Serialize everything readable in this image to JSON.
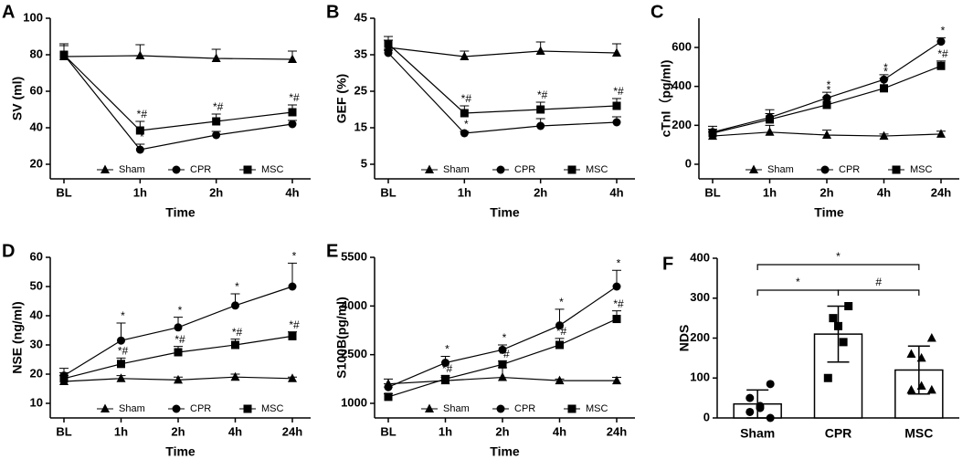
{
  "chart_data": [
    {
      "type": "line",
      "panel": "A",
      "ylabel": "SV (ml)",
      "xlabel": "Time",
      "categories": [
        "BL",
        "1h",
        "2h",
        "4h"
      ],
      "ylim": [
        20,
        100
      ],
      "yticks": [
        20,
        40,
        60,
        80,
        100
      ],
      "series": [
        {
          "name": "Sham",
          "marker": "triangle",
          "color": "#000000",
          "values": [
            79,
            79.5,
            78,
            77.5
          ],
          "errors": [
            7,
            6,
            5,
            4.5
          ],
          "annotations": [
            null,
            null,
            null,
            null
          ]
        },
        {
          "name": "CPR",
          "marker": "circle",
          "color": "#000000",
          "values": [
            80,
            28,
            36,
            42
          ],
          "errors": [
            5,
            3,
            2,
            2
          ],
          "annotations": [
            null,
            "*",
            "*",
            "*"
          ]
        },
        {
          "name": "MSC",
          "marker": "square",
          "color": "#000000",
          "values": [
            80,
            38.5,
            43.5,
            48.5
          ],
          "errors": [
            5,
            5,
            4,
            4
          ],
          "annotations": [
            null,
            "*#",
            "*#",
            "*#"
          ]
        }
      ]
    },
    {
      "type": "line",
      "panel": "B",
      "ylabel": "GEF (%)",
      "xlabel": "Time",
      "categories": [
        "BL",
        "1h",
        "2h",
        "4h"
      ],
      "ylim": [
        5,
        45
      ],
      "yticks": [
        5,
        15,
        25,
        35,
        45
      ],
      "series": [
        {
          "name": "Sham",
          "marker": "triangle",
          "color": "#000000",
          "values": [
            37,
            34.5,
            36,
            35.5
          ],
          "errors": [
            2,
            1.5,
            2.5,
            2.5
          ],
          "annotations": [
            null,
            null,
            null,
            null
          ]
        },
        {
          "name": "CPR",
          "marker": "circle",
          "color": "#000000",
          "values": [
            35.5,
            13.5,
            15.5,
            16.5
          ],
          "errors": [
            1,
            0.5,
            2,
            1.5
          ],
          "annotations": [
            null,
            "*",
            "*",
            null
          ]
        },
        {
          "name": "MSC",
          "marker": "square",
          "color": "#000000",
          "values": [
            38,
            19,
            20,
            21
          ],
          "errors": [
            2,
            2,
            2,
            2
          ],
          "annotations": [
            null,
            "*#",
            "*#",
            "*#"
          ]
        }
      ]
    },
    {
      "type": "line",
      "panel": "C",
      "ylabel": "cTnI（pg/ml)",
      "xlabel": "Time",
      "categories": [
        "BL",
        "1h",
        "2h",
        "4h",
        "24h"
      ],
      "ylim": [
        0,
        750
      ],
      "yticks": [
        0,
        200,
        400,
        600
      ],
      "series": [
        {
          "name": "Sham",
          "marker": "triangle",
          "color": "#000000",
          "values": [
            145,
            165,
            150,
            145,
            155
          ],
          "errors": [
            20,
            35,
            25,
            10,
            15
          ],
          "annotations": [
            null,
            null,
            null,
            null,
            null
          ]
        },
        {
          "name": "CPR",
          "marker": "circle",
          "color": "#000000",
          "values": [
            165,
            240,
            340,
            435,
            630
          ],
          "errors": [
            30,
            40,
            30,
            25,
            20
          ],
          "annotations": [
            null,
            null,
            "*",
            "*",
            "*"
          ]
        },
        {
          "name": "MSC",
          "marker": "square",
          "color": "#000000",
          "values": [
            160,
            230,
            305,
            390,
            505
          ],
          "errors": [
            20,
            30,
            40,
            50,
            25
          ],
          "annotations": [
            null,
            null,
            "*",
            "*",
            "*#"
          ]
        }
      ]
    },
    {
      "type": "line",
      "panel": "D",
      "ylabel": "NSE (ng/ml)",
      "xlabel": "Time",
      "categories": [
        "BL",
        "1h",
        "2h",
        "4h",
        "24h"
      ],
      "ylim": [
        10,
        60
      ],
      "yticks": [
        10,
        20,
        30,
        40,
        50,
        60
      ],
      "series": [
        {
          "name": "Sham",
          "marker": "triangle",
          "color": "#000000",
          "values": [
            17.5,
            18.5,
            18,
            19,
            18.5
          ],
          "errors": [
            2,
            1,
            1,
            1,
            0.5
          ],
          "annotations": [
            null,
            null,
            null,
            null,
            null
          ]
        },
        {
          "name": "CPR",
          "marker": "circle",
          "color": "#000000",
          "values": [
            19.5,
            31.5,
            36,
            43.5,
            50
          ],
          "errors": [
            2.5,
            6,
            3.5,
            4,
            8
          ],
          "annotations": [
            null,
            "*",
            "*",
            "*",
            "*"
          ]
        },
        {
          "name": "MSC",
          "marker": "square",
          "color": "#000000",
          "values": [
            18.5,
            23.5,
            27.5,
            30,
            33
          ],
          "errors": [
            2,
            2,
            2,
            2,
            1.5
          ],
          "annotations": [
            null,
            "*#",
            "*#",
            "*#",
            "*#"
          ]
        }
      ]
    },
    {
      "type": "line",
      "panel": "E",
      "ylabel": "S100B(pg/ml)",
      "xlabel": "Time",
      "categories": [
        "BL",
        "1h",
        "2h",
        "4h",
        "24h"
      ],
      "ylim": [
        1000,
        5500
      ],
      "yticks": [
        1000,
        2500,
        4000,
        5500
      ],
      "series": [
        {
          "name": "Sham",
          "marker": "triangle",
          "color": "#000000",
          "values": [
            1600,
            1700,
            1800,
            1700,
            1700
          ],
          "errors": [
            150,
            100,
            300,
            50,
            100
          ],
          "annotations": [
            null,
            null,
            null,
            null,
            null
          ]
        },
        {
          "name": "CPR",
          "marker": "circle",
          "color": "#000000",
          "values": [
            1500,
            2250,
            2650,
            3400,
            4600
          ],
          "errors": [
            100,
            200,
            150,
            500,
            500
          ],
          "annotations": [
            null,
            "*",
            "*",
            "*",
            "*"
          ]
        },
        {
          "name": "MSC",
          "marker": "square",
          "color": "#000000",
          "values": [
            1200,
            1750,
            2200,
            2800,
            3600
          ],
          "errors": [
            100,
            100,
            100,
            200,
            250
          ],
          "annotations": [
            null,
            "*#",
            "*#",
            "*#",
            "*#"
          ]
        }
      ]
    },
    {
      "type": "bar",
      "panel": "F",
      "ylabel": "NDS",
      "categories": [
        "Sham",
        "CPR",
        "MSC"
      ],
      "values": [
        35,
        210,
        120
      ],
      "errors": [
        35,
        70,
        60
      ],
      "markers": [
        "circle",
        "square",
        "triangle"
      ],
      "points": [
        [
          85,
          50,
          30,
          25,
          15,
          0
        ],
        [
          280,
          250,
          230,
          190,
          100
        ],
        [
          200,
          160,
          150,
          80,
          70,
          70
        ]
      ],
      "ylim": [
        0,
        400
      ],
      "yticks": [
        0,
        100,
        200,
        300,
        400
      ],
      "significance": [
        {
          "pair": [
            "Sham",
            "CPR"
          ],
          "label": "*"
        },
        {
          "pair": [
            "CPR",
            "MSC"
          ],
          "label": "#"
        },
        {
          "pair": [
            "Sham",
            "MSC"
          ],
          "label": "*"
        }
      ]
    }
  ]
}
